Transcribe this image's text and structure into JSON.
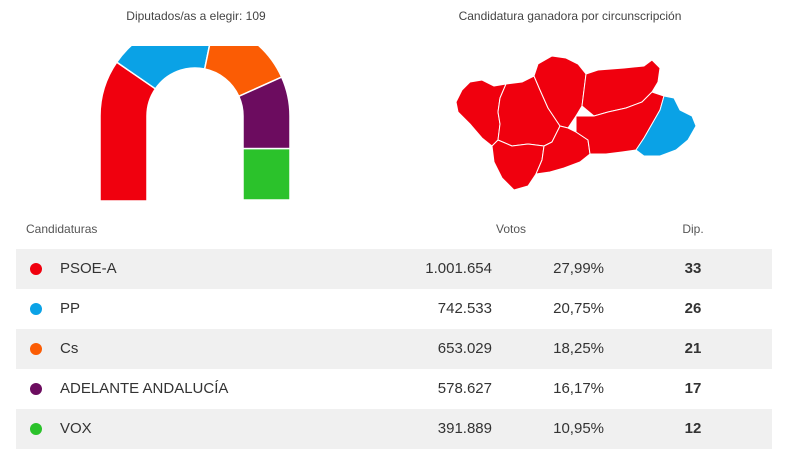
{
  "parliament": {
    "title": "Diputados/as a elegir: 109"
  },
  "map": {
    "title": "Candidatura ganadora por circunscripción",
    "provinces": [
      {
        "name": "Huelva",
        "winner": "PSOE-A"
      },
      {
        "name": "Sevilla",
        "winner": "PSOE-A"
      },
      {
        "name": "Córdoba",
        "winner": "PSOE-A"
      },
      {
        "name": "Jaén",
        "winner": "PSOE-A"
      },
      {
        "name": "Cádiz",
        "winner": "PSOE-A"
      },
      {
        "name": "Málaga",
        "winner": "PSOE-A"
      },
      {
        "name": "Granada",
        "winner": "PSOE-A"
      },
      {
        "name": "Almería",
        "winner": "PP"
      }
    ]
  },
  "table": {
    "headers": {
      "candidatura": "Candidaturas",
      "votos": "Votos",
      "dip": "Dip."
    }
  },
  "chart_data": {
    "type": "table",
    "rows": [
      {
        "party": "PSOE-A",
        "color": "#f0000e",
        "votes": "1.001.654",
        "pct": "27,99%",
        "seats": 33
      },
      {
        "party": "PP",
        "color": "#0aa2e6",
        "votes": "742.533",
        "pct": "20,75%",
        "seats": 26
      },
      {
        "party": "Cs",
        "color": "#fb5c04",
        "votes": "653.029",
        "pct": "18,25%",
        "seats": 21
      },
      {
        "party": "ADELANTE ANDALUCÍA",
        "color": "#6c0c5f",
        "votes": "578.627",
        "pct": "16,17%",
        "seats": 17
      },
      {
        "party": "VOX",
        "color": "#2bc22b",
        "votes": "391.889",
        "pct": "10,95%",
        "seats": 12
      }
    ]
  }
}
